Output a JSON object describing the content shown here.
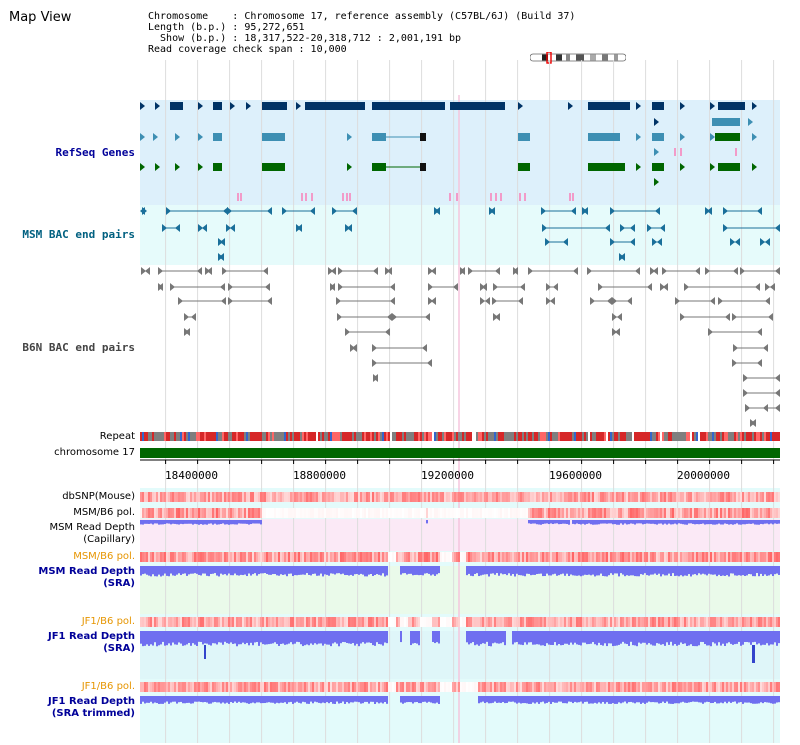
{
  "title": "Map View",
  "info": {
    "line1": "Chromosome    : Chromosome 17, reference assembly (C57BL/6J) (Build 37)",
    "line2": "Length (b.p.) : 95,272,651",
    "line3": "  Show (b.p.) : 18,317,522-20,318,712 : 2,001,191 bp",
    "line4": "Read coverage check span : 10,000"
  },
  "tracks": {
    "refseq": "RefSeq Genes",
    "msm_bac": "MSM BAC end pairs",
    "b6n_bac": "B6N BAC end pairs",
    "repeat": "Repeat",
    "chromosome": "chromosome 17",
    "dbsnp": "dbSNP(Mouse)",
    "msm_b6_pol_1": "MSM/B6 pol.",
    "msm_read_depth_cap_1": "MSM Read Depth",
    "msm_read_depth_cap_2": "(Capillary)",
    "msm_b6_pol_2": "MSM/B6 pol.",
    "msm_read_depth_sra_1": "MSM Read Depth",
    "msm_read_depth_sra_2": "(SRA)",
    "jf1_b6_pol_1": "JF1/B6 pol.",
    "jf1_read_depth_sra_1": "JF1 Read Depth",
    "jf1_read_depth_sra_2": "(SRA)",
    "jf1_b6_pol_2": "JF1/B6 pol.",
    "jf1_read_depth_trim_1": "JF1 Read Depth",
    "jf1_read_depth_trim_2": "(SRA trimmed)"
  },
  "axis": {
    "ticks": [
      "18400000",
      "18800000",
      "19200000",
      "19600000",
      "20000000"
    ]
  },
  "colors": {
    "refseq_bg": "#ddf0fb",
    "msm_bac_bg": "#e6fbfb",
    "gene_dark": "#003366",
    "gene_mid": "#3d8fb3",
    "gene_green": "#006600",
    "label_blue": "#000099",
    "label_teal": "#006080",
    "label_grey": "#444444",
    "label_orange": "#e69500",
    "chrom_green": "#006600"
  }
}
